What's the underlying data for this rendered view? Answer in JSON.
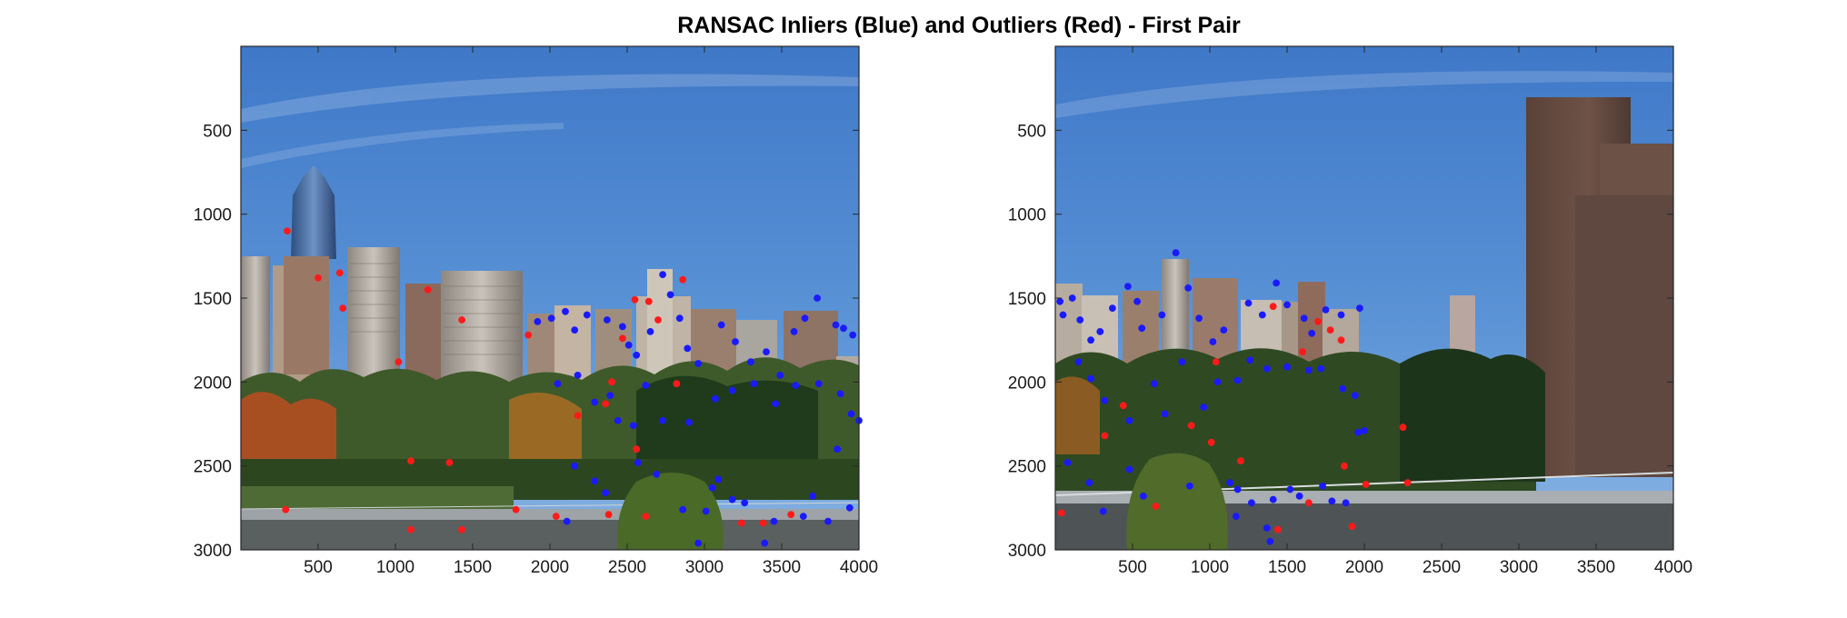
{
  "figure": {
    "title": "RANSAC Inliers (Blue) and Outliers (Red) - First Pair"
  },
  "colors": {
    "inlier": "#1a1aff",
    "outlier": "#ff1a1a",
    "axis": "#262626"
  },
  "chart_data": [
    {
      "type": "scatter",
      "panel": "left",
      "xlim": [
        0,
        4000
      ],
      "ylim": [
        0,
        3000
      ],
      "y_reversed": true,
      "xticks": [
        "500",
        "1000",
        "1500",
        "2000",
        "2500",
        "3000",
        "3500",
        "4000"
      ],
      "yticks": [
        "500",
        "1000",
        "1500",
        "2000",
        "2500",
        "3000"
      ],
      "series": [
        {
          "role": "inlier",
          "points": [
            [
              1920,
              1640
            ],
            [
              2010,
              1620
            ],
            [
              2100,
              1580
            ],
            [
              2160,
              1690
            ],
            [
              2240,
              1600
            ],
            [
              2370,
              1630
            ],
            [
              2470,
              1670
            ],
            [
              2510,
              1780
            ],
            [
              2560,
              1840
            ],
            [
              2650,
              1700
            ],
            [
              2730,
              1360
            ],
            [
              2780,
              1480
            ],
            [
              2840,
              1620
            ],
            [
              2890,
              1800
            ],
            [
              2960,
              1890
            ],
            [
              3110,
              1660
            ],
            [
              3200,
              1760
            ],
            [
              3300,
              1880
            ],
            [
              3400,
              1820
            ],
            [
              3490,
              1960
            ],
            [
              3580,
              1700
            ],
            [
              3650,
              1620
            ],
            [
              3730,
              1500
            ],
            [
              3850,
              1660
            ],
            [
              3900,
              1680
            ],
            [
              3960,
              1720
            ],
            [
              2050,
              2010
            ],
            [
              2180,
              1960
            ],
            [
              2290,
              2120
            ],
            [
              2390,
              2080
            ],
            [
              2440,
              2230
            ],
            [
              2540,
              2260
            ],
            [
              2620,
              2020
            ],
            [
              2730,
              2230
            ],
            [
              2900,
              2240
            ],
            [
              3070,
              2100
            ],
            [
              3180,
              2050
            ],
            [
              3320,
              2010
            ],
            [
              3460,
              2130
            ],
            [
              3590,
              2020
            ],
            [
              3740,
              2010
            ],
            [
              3880,
              2070
            ],
            [
              3950,
              2190
            ],
            [
              4000,
              2230
            ],
            [
              2160,
              2500
            ],
            [
              2290,
              2590
            ],
            [
              2360,
              2660
            ],
            [
              2570,
              2480
            ],
            [
              2690,
              2550
            ],
            [
              2860,
              2760
            ],
            [
              2960,
              2960
            ],
            [
              3010,
              2770
            ],
            [
              3050,
              2630
            ],
            [
              3090,
              2580
            ],
            [
              3180,
              2700
            ],
            [
              3260,
              2720
            ],
            [
              3390,
              2960
            ],
            [
              3450,
              2830
            ],
            [
              3640,
              2800
            ],
            [
              3700,
              2680
            ],
            [
              3800,
              2830
            ],
            [
              3860,
              2400
            ],
            [
              3940,
              2750
            ],
            [
              2110,
              2830
            ]
          ]
        },
        {
          "role": "outlier",
          "points": [
            [
              300,
              1100
            ],
            [
              500,
              1380
            ],
            [
              640,
              1350
            ],
            [
              660,
              1560
            ],
            [
              1020,
              1880
            ],
            [
              1210,
              1450
            ],
            [
              1430,
              1630
            ],
            [
              1860,
              1720
            ],
            [
              2470,
              1740
            ],
            [
              2550,
              1510
            ],
            [
              2640,
              1520
            ],
            [
              2700,
              1630
            ],
            [
              2860,
              1390
            ],
            [
              2360,
              2130
            ],
            [
              2400,
              2000
            ],
            [
              2560,
              2400
            ],
            [
              2180,
              2200
            ],
            [
              2820,
              2010
            ],
            [
              1100,
              2470
            ],
            [
              1350,
              2480
            ],
            [
              290,
              2760
            ],
            [
              1100,
              2880
            ],
            [
              1430,
              2880
            ],
            [
              1780,
              2760
            ],
            [
              2040,
              2800
            ],
            [
              2380,
              2790
            ],
            [
              2620,
              2800
            ],
            [
              3240,
              2840
            ],
            [
              3560,
              2790
            ],
            [
              3380,
              2840
            ]
          ]
        }
      ]
    },
    {
      "type": "scatter",
      "panel": "right",
      "xlim": [
        0,
        4000
      ],
      "ylim": [
        0,
        3000
      ],
      "y_reversed": true,
      "xticks": [
        "500",
        "1000",
        "1500",
        "2000",
        "2500",
        "3000",
        "3500",
        "4000"
      ],
      "yticks": [
        "500",
        "1000",
        "1500",
        "2000",
        "2500",
        "3000"
      ],
      "series": [
        {
          "role": "inlier",
          "points": [
            [
              30,
              1520
            ],
            [
              50,
              1600
            ],
            [
              110,
              1500
            ],
            [
              160,
              1630
            ],
            [
              230,
              1750
            ],
            [
              290,
              1700
            ],
            [
              370,
              1560
            ],
            [
              470,
              1430
            ],
            [
              530,
              1520
            ],
            [
              560,
              1680
            ],
            [
              690,
              1600
            ],
            [
              780,
              1230
            ],
            [
              860,
              1440
            ],
            [
              930,
              1620
            ],
            [
              1020,
              1760
            ],
            [
              1090,
              1690
            ],
            [
              1250,
              1530
            ],
            [
              1340,
              1600
            ],
            [
              1430,
              1410
            ],
            [
              1500,
              1540
            ],
            [
              1610,
              1620
            ],
            [
              1660,
              1710
            ],
            [
              1750,
              1570
            ],
            [
              1850,
              1600
            ],
            [
              1970,
              1560
            ],
            [
              150,
              1880
            ],
            [
              230,
              1980
            ],
            [
              320,
              2110
            ],
            [
              480,
              2230
            ],
            [
              640,
              2010
            ],
            [
              710,
              2190
            ],
            [
              820,
              1880
            ],
            [
              960,
              2150
            ],
            [
              1050,
              2000
            ],
            [
              1180,
              1990
            ],
            [
              1260,
              1870
            ],
            [
              1370,
              1920
            ],
            [
              1500,
              1910
            ],
            [
              1640,
              1930
            ],
            [
              1720,
              1920
            ],
            [
              1860,
              2040
            ],
            [
              1940,
              2080
            ],
            [
              2000,
              2290
            ],
            [
              80,
              2480
            ],
            [
              220,
              2600
            ],
            [
              310,
              2770
            ],
            [
              480,
              2520
            ],
            [
              570,
              2680
            ],
            [
              870,
              2620
            ],
            [
              1130,
              2600
            ],
            [
              1180,
              2640
            ],
            [
              1270,
              2720
            ],
            [
              1410,
              2700
            ],
            [
              1520,
              2640
            ],
            [
              1580,
              2680
            ],
            [
              1730,
              2620
            ],
            [
              1790,
              2710
            ],
            [
              1880,
              2720
            ],
            [
              1960,
              2300
            ],
            [
              1370,
              2870
            ],
            [
              1390,
              2950
            ],
            [
              1170,
              2800
            ]
          ]
        },
        {
          "role": "outlier",
          "points": [
            [
              40,
              2780
            ],
            [
              320,
              2320
            ],
            [
              1010,
              2360
            ],
            [
              1200,
              2470
            ],
            [
              1700,
              1640
            ],
            [
              1850,
              1750
            ],
            [
              1600,
              1820
            ],
            [
              1780,
              1690
            ],
            [
              1410,
              1550
            ],
            [
              1870,
              2500
            ],
            [
              1640,
              2720
            ],
            [
              1920,
              2860
            ],
            [
              1440,
              2880
            ],
            [
              2010,
              2610
            ],
            [
              2250,
              2270
            ],
            [
              2280,
              2600
            ],
            [
              650,
              2740
            ],
            [
              440,
              2140
            ],
            [
              880,
              2260
            ],
            [
              1040,
              1880
            ]
          ]
        }
      ]
    }
  ]
}
